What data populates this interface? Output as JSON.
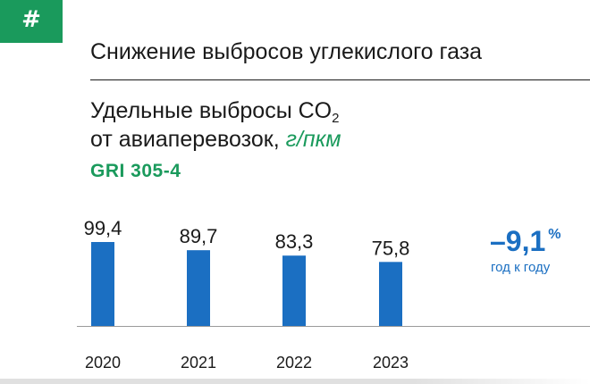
{
  "header": {
    "badge_symbol": "#",
    "section_title": "Снижение выбросов углекислого газа",
    "subtitle_line1": "Удельные выбросы CO",
    "subtitle_sub": "2",
    "subtitle_line2": "от авиаперевозок, ",
    "subtitle_unit": "г/пкм",
    "gri_code": "GRI 305-4"
  },
  "change": {
    "value": "–9,1",
    "unit": "%",
    "label": "год к году"
  },
  "colors": {
    "accent_green": "#1a9a5c",
    "bar_blue": "#1b6fc2",
    "text": "#1a1a1a"
  },
  "chart_data": {
    "type": "bar",
    "categories": [
      "2020",
      "2021",
      "2022",
      "2023"
    ],
    "values": [
      99.4,
      89.7,
      83.3,
      75.8
    ],
    "value_labels": [
      "99,4",
      "89,7",
      "83,3",
      "75,8"
    ],
    "title": "Удельные выбросы CO2 от авиаперевозок, г/пкм",
    "xlabel": "",
    "ylabel": "",
    "ylim": [
      0,
      99.4
    ],
    "grid": false,
    "legend": "none"
  }
}
